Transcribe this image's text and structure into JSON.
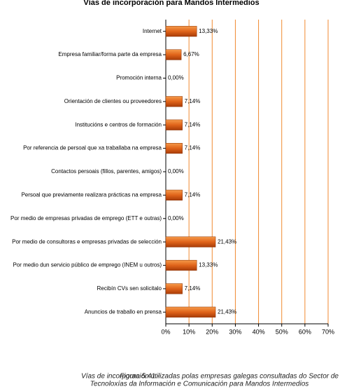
{
  "chart_data": {
    "type": "barh",
    "title": "Vías de incorporación para Mandos Intermedios",
    "categories": [
      "Internet",
      "Empresa familiar/forma parte da empresa",
      "Promoción interna",
      "Orientación de clientes ou proveedores",
      "Institucións e centros de formación",
      "Por referencia de persoal que xa traballaba na empresa",
      "Contactos persoais (fillos, parentes, amigos)",
      "Persoal que previamente realizara prácticas na empresa",
      "Por medio de empresas privadas de emprego (ETT e outras)",
      "Por medio de consultoras e empresas privadas de selección",
      "Por medio dun servicio público de emprego (INEM u outros)",
      "Recibín CVs sen solicitalo",
      "Anuncios de traballo en prensa"
    ],
    "values": [
      13.33,
      6.67,
      0,
      7.14,
      7.14,
      7.14,
      0,
      7.14,
      0,
      21.43,
      13.33,
      7.14,
      21.43
    ],
    "value_labels": [
      "13,33%",
      "6,67%",
      "0,00%",
      "7,14%",
      "7,14%",
      "7,14%",
      "0,00%",
      "7,14%",
      "0,00%",
      "21,43%",
      "13,33%",
      "7,14%",
      "21,43%"
    ],
    "color": "#e0641a",
    "grid": true,
    "xlim": [
      0,
      70
    ],
    "xticks": [
      {
        "value": 0,
        "label": "0%"
      },
      {
        "value": 10,
        "label": "10%"
      },
      {
        "value": 20,
        "label": "20%"
      },
      {
        "value": 30,
        "label": "30%"
      },
      {
        "value": 40,
        "label": "40%"
      },
      {
        "value": 50,
        "label": "50%"
      },
      {
        "value": 60,
        "label": "60%"
      },
      {
        "value": 70,
        "label": "70%"
      }
    ]
  },
  "caption": {
    "label": "Figura 5.41.-",
    "lines": [
      "Vías de incorporación utilizadas polas empresas galegas consultadas do Sector de",
      "Tecnoloxías da Información e Comunicación para Mandos Intermedios"
    ]
  }
}
